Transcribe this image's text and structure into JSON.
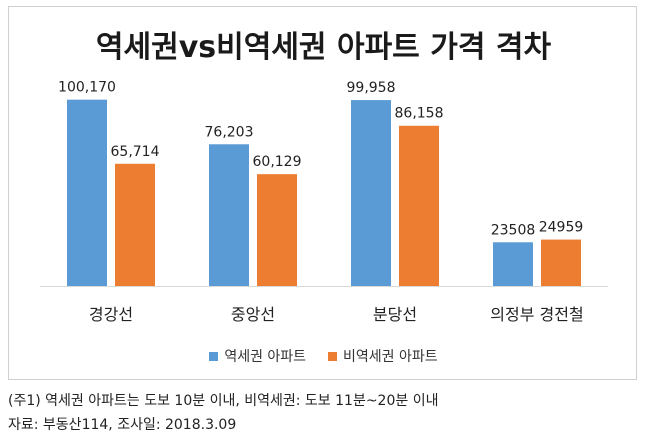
{
  "chart_data": {
    "type": "bar",
    "title": "역세권vs비역세권 아파트 가격 격차",
    "categories": [
      "경강선",
      "중앙선",
      "분당선",
      "의정부 경전철"
    ],
    "series": [
      {
        "name": "역세권 아파트",
        "color": "#5B9BD5",
        "values": [
          100170,
          76203,
          99958,
          23508
        ],
        "labels": [
          "100,170",
          "76,203",
          "99,958",
          "23508"
        ]
      },
      {
        "name": "비역세권 아파트",
        "color": "#ED7D31",
        "values": [
          65714,
          60129,
          86158,
          24959
        ],
        "labels": [
          "65,714",
          "60,129",
          "86,158",
          "24959"
        ]
      }
    ],
    "ylim": [
      0,
      110000
    ],
    "grid": false,
    "legend_position": "bottom"
  },
  "notes": {
    "line1": "(주1) 역세권 아파트는 도보 10분 이내, 비역세권: 도보 11분~20분 이내",
    "line2": "자료: 부동산114, 조사일: 2018.3.09"
  }
}
